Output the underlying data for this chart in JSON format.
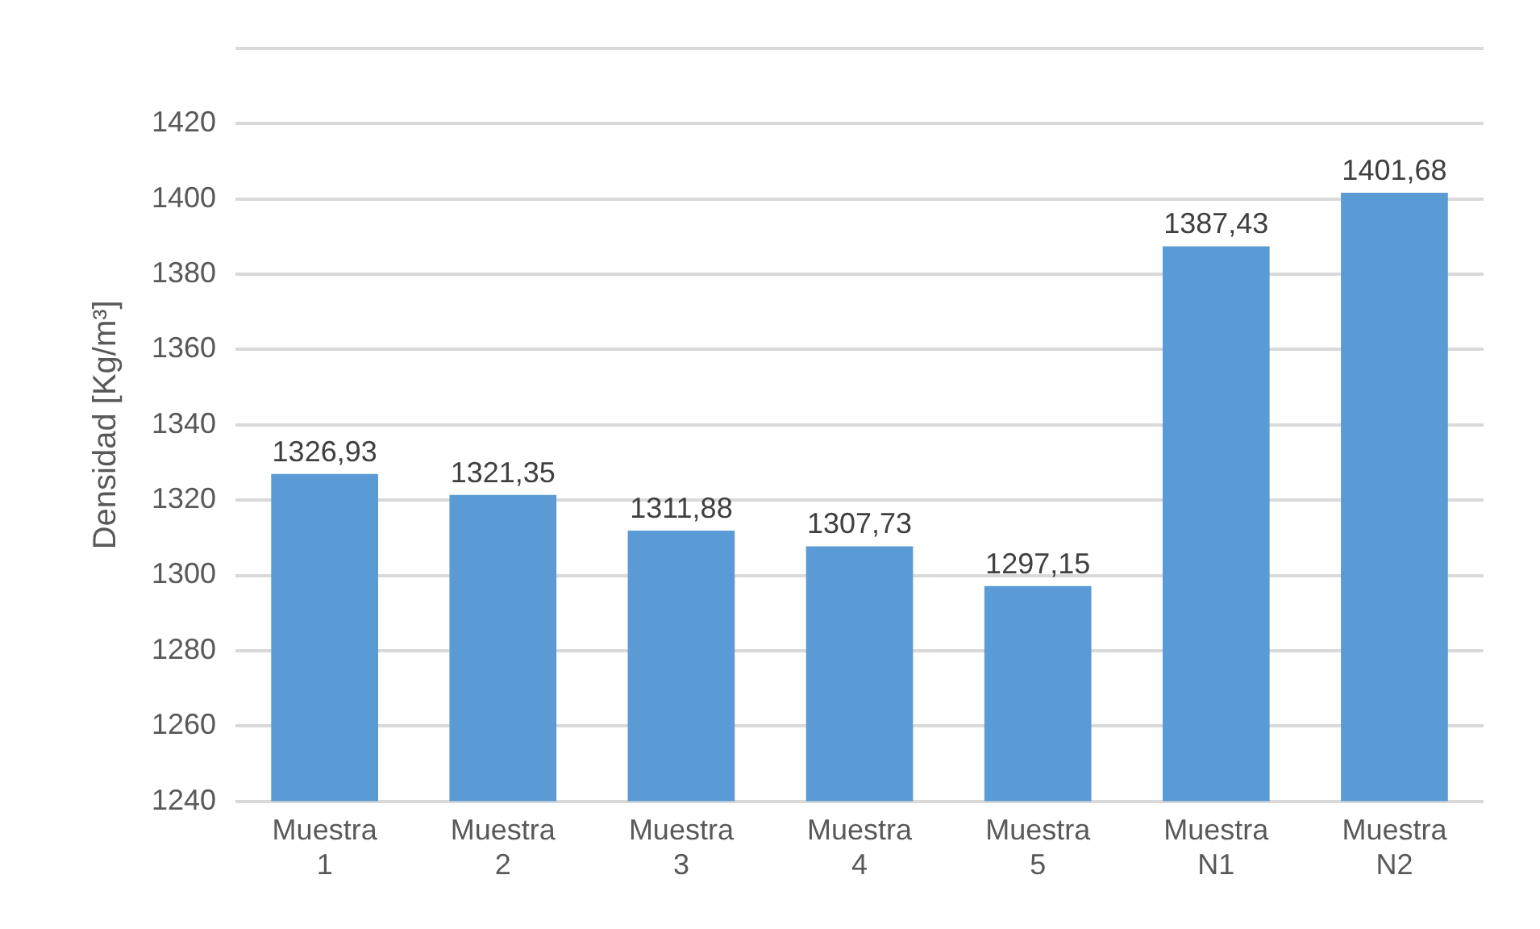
{
  "chart_data": {
    "type": "bar",
    "ylabel": "Densidad [Kg/m³]",
    "categories": [
      "Muestra 1",
      "Muestra 2",
      "Muestra 3",
      "Muestra 4",
      "Muestra 5",
      "Muestra N1",
      "Muestra N2"
    ],
    "values": [
      1326.93,
      1321.35,
      1311.88,
      1307.73,
      1297.15,
      1387.43,
      1401.68
    ],
    "value_labels": [
      "1326,93",
      "1321,35",
      "1311,88",
      "1307,73",
      "1297,15",
      "1387,43",
      "1401,68"
    ],
    "color": "#5b9bd5",
    "ylim": [
      1240,
      1440
    ],
    "yticks": [
      1240,
      1260,
      1280,
      1300,
      1320,
      1340,
      1360,
      1380,
      1400,
      1420,
      {
        "value": 1440,
        "label": null
      }
    ],
    "grid": "y"
  }
}
